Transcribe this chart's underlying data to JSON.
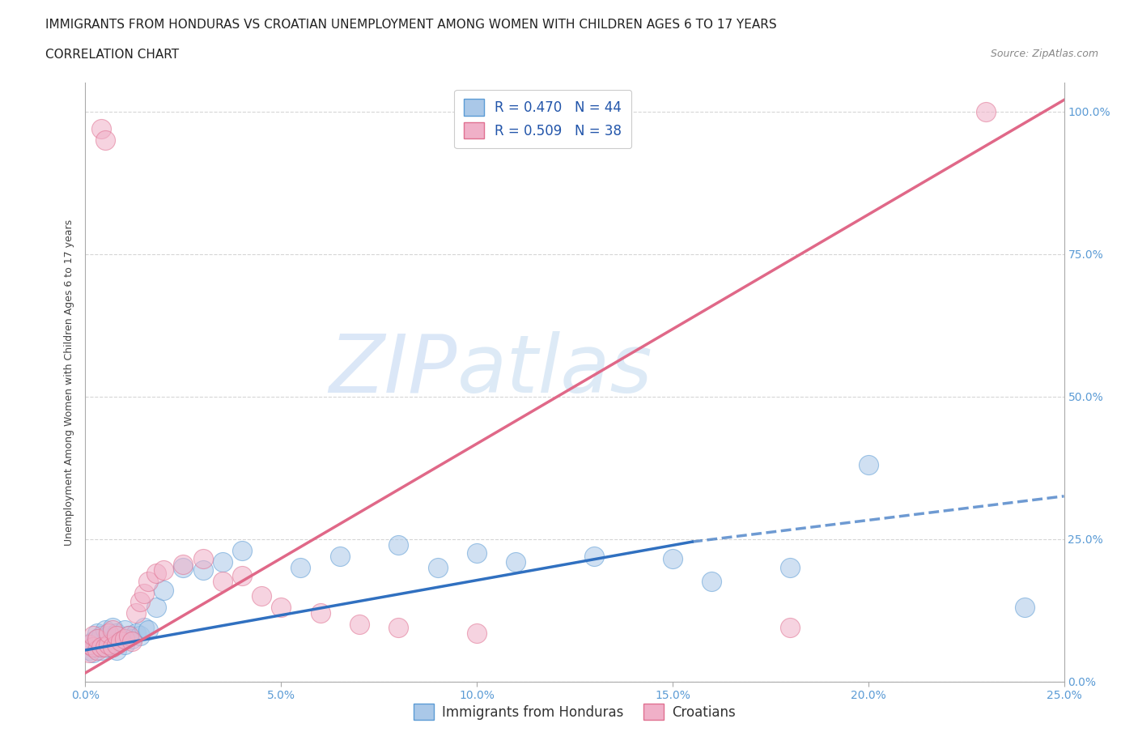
{
  "title_line1": "IMMIGRANTS FROM HONDURAS VS CROATIAN UNEMPLOYMENT AMONG WOMEN WITH CHILDREN AGES 6 TO 17 YEARS",
  "title_line2": "CORRELATION CHART",
  "source_text": "Source: ZipAtlas.com",
  "xlim": [
    0.0,
    0.25
  ],
  "ylim": [
    0.0,
    1.05
  ],
  "x_tick_vals": [
    0.0,
    0.05,
    0.1,
    0.15,
    0.2,
    0.25
  ],
  "x_tick_labels": [
    "0.0%",
    "5.0%",
    "10.0%",
    "15.0%",
    "20.0%",
    "25.0%"
  ],
  "y_tick_vals": [
    0.0,
    0.25,
    0.5,
    0.75,
    1.0
  ],
  "y_tick_labels": [
    "0.0%",
    "25.0%",
    "50.0%",
    "75.0%",
    "100.0%"
  ],
  "legend_labels": [
    "R = 0.470   N = 44",
    "R = 0.509   N = 38"
  ],
  "bottom_legend_labels": [
    "Immigrants from Honduras",
    "Croatians"
  ],
  "watermark_part1": "ZIP",
  "watermark_part2": "atlas",
  "blue_scatter_x": [
    0.001,
    0.001,
    0.002,
    0.002,
    0.003,
    0.003,
    0.003,
    0.004,
    0.004,
    0.005,
    0.005,
    0.006,
    0.006,
    0.007,
    0.007,
    0.008,
    0.008,
    0.009,
    0.01,
    0.01,
    0.011,
    0.012,
    0.013,
    0.014,
    0.015,
    0.016,
    0.018,
    0.02,
    0.025,
    0.03,
    0.035,
    0.04,
    0.055,
    0.065,
    0.08,
    0.09,
    0.1,
    0.11,
    0.13,
    0.15,
    0.16,
    0.18,
    0.2,
    0.24
  ],
  "blue_scatter_y": [
    0.055,
    0.065,
    0.05,
    0.07,
    0.06,
    0.075,
    0.085,
    0.055,
    0.08,
    0.06,
    0.09,
    0.065,
    0.08,
    0.06,
    0.095,
    0.055,
    0.085,
    0.07,
    0.065,
    0.09,
    0.08,
    0.075,
    0.085,
    0.08,
    0.095,
    0.09,
    0.13,
    0.16,
    0.2,
    0.195,
    0.21,
    0.23,
    0.2,
    0.22,
    0.24,
    0.2,
    0.225,
    0.21,
    0.22,
    0.215,
    0.175,
    0.2,
    0.38,
    0.13
  ],
  "pink_scatter_x": [
    0.001,
    0.001,
    0.002,
    0.002,
    0.003,
    0.003,
    0.004,
    0.004,
    0.005,
    0.005,
    0.006,
    0.006,
    0.007,
    0.007,
    0.008,
    0.008,
    0.009,
    0.01,
    0.011,
    0.012,
    0.013,
    0.014,
    0.015,
    0.016,
    0.018,
    0.02,
    0.025,
    0.03,
    0.035,
    0.04,
    0.045,
    0.05,
    0.06,
    0.07,
    0.08,
    0.1,
    0.18,
    0.23
  ],
  "pink_scatter_y": [
    0.05,
    0.065,
    0.06,
    0.08,
    0.055,
    0.075,
    0.06,
    0.97,
    0.06,
    0.95,
    0.065,
    0.085,
    0.06,
    0.09,
    0.065,
    0.08,
    0.07,
    0.075,
    0.08,
    0.07,
    0.12,
    0.14,
    0.155,
    0.175,
    0.19,
    0.195,
    0.205,
    0.215,
    0.175,
    0.185,
    0.15,
    0.13,
    0.12,
    0.1,
    0.095,
    0.085,
    0.095,
    1.0
  ],
  "blue_solid_line_x": [
    0.0,
    0.155
  ],
  "blue_solid_line_y": [
    0.055,
    0.245
  ],
  "blue_dashed_line_x": [
    0.155,
    0.25
  ],
  "blue_dashed_line_y": [
    0.245,
    0.325
  ],
  "pink_line_x": [
    0.0,
    0.25
  ],
  "pink_line_y": [
    0.015,
    1.02
  ],
  "title_fontsize": 11,
  "subtitle_fontsize": 11,
  "source_fontsize": 9,
  "tick_fontsize": 10,
  "legend_fontsize": 12,
  "ylabel_fontsize": 9,
  "blue_fill_color": "#aac8e8",
  "blue_edge_color": "#5b9bd5",
  "pink_fill_color": "#f0b0c8",
  "pink_edge_color": "#e07090",
  "blue_line_color": "#3070c0",
  "pink_line_color": "#e06888",
  "grid_color": "#cccccc",
  "title_color": "#222222",
  "tick_color": "#5b9bd5",
  "ylabel_color": "#444444"
}
